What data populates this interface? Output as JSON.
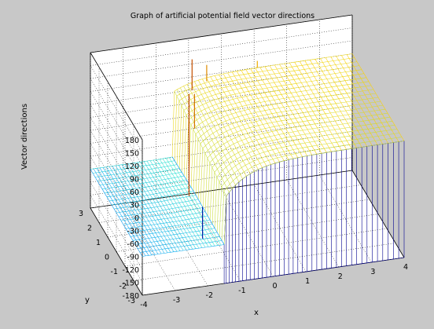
{
  "chart_data": {
    "type": "surface",
    "title": "Graph of artificial potential field vector directions",
    "xlabel": "x",
    "ylabel": "y",
    "zlabel": "Vector directions",
    "xlim": [
      -4,
      4
    ],
    "ylim": [
      -3,
      3
    ],
    "zlim": [
      -180,
      180
    ],
    "x_ticks": [
      "-4",
      "-3",
      "-2",
      "-1",
      "0",
      "1",
      "2",
      "3",
      "4"
    ],
    "y_ticks": [
      "-3",
      "-2",
      "-1",
      "0",
      "1",
      "2",
      "3"
    ],
    "z_ticks": [
      "-180",
      "-150",
      "-120",
      "-90",
      "-60",
      "-30",
      "0",
      "30",
      "60",
      "90",
      "120",
      "150",
      "180"
    ],
    "grid": true,
    "colormap": "jet",
    "description_values": {
      "plateau_right_z": 90,
      "wall_bottom_z": -180,
      "left_plane_z": -90,
      "singularity_xy": [
        -1.5,
        0.5
      ]
    },
    "colors": {
      "low": "#00008f",
      "mid_low": "#0090ff",
      "mid": "#40ffc0",
      "mid_high": "#ffd000",
      "high": "#a00000"
    }
  }
}
